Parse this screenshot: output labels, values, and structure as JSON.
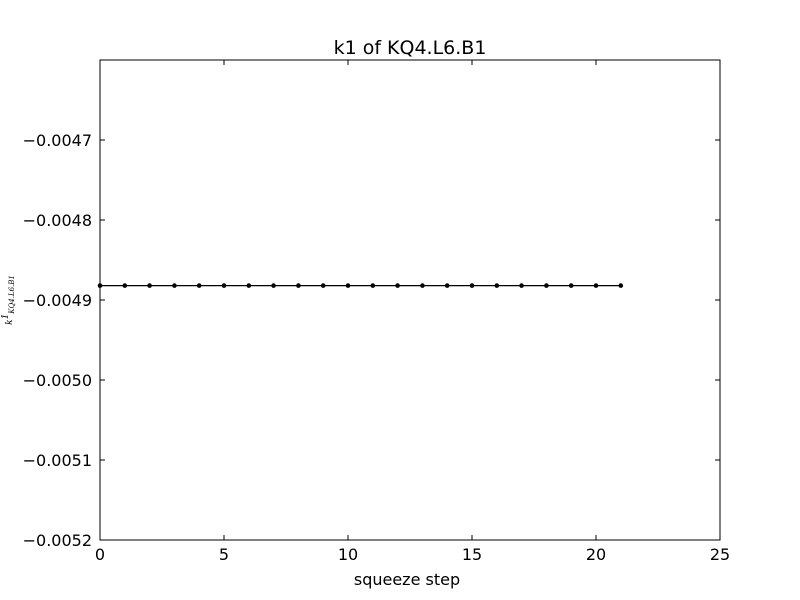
{
  "chart_data": {
    "type": "line",
    "title": "k1 of KQ4.L6.B1",
    "xlabel": "squeeze step",
    "ylabel": {
      "main": "k",
      "superscript": "1",
      "subscript": "KQ4.L6.B1"
    },
    "xlim": [
      0,
      25
    ],
    "ylim": [
      -0.0052,
      -0.0046
    ],
    "x_ticks": [
      0,
      5,
      10,
      15,
      20,
      25
    ],
    "x_tick_labels": [
      "0",
      "5",
      "10",
      "15",
      "20",
      "25"
    ],
    "y_ticks": [
      -0.0047,
      -0.0048,
      -0.0049,
      -0.005,
      -0.0051,
      -0.0052
    ],
    "y_tick_labels": [
      "−0.0047",
      "−0.0048",
      "−0.0049",
      "−0.0050",
      "−0.0051",
      "−0.0052"
    ],
    "grid": false,
    "marker": "dot",
    "series": [
      {
        "color": "#000000",
        "x": [
          0,
          1,
          2,
          3,
          4,
          5,
          6,
          7,
          8,
          9,
          10,
          11,
          12,
          13,
          14,
          15,
          16,
          17,
          18,
          19,
          20,
          21
        ],
        "y": [
          -0.004882,
          -0.004882,
          -0.004882,
          -0.004882,
          -0.004882,
          -0.004882,
          -0.004882,
          -0.004882,
          -0.004882,
          -0.004882,
          -0.004882,
          -0.004882,
          -0.004882,
          -0.004882,
          -0.004882,
          -0.004882,
          -0.004882,
          -0.004882,
          -0.004882,
          -0.004882,
          -0.004882,
          -0.004882
        ]
      }
    ]
  }
}
